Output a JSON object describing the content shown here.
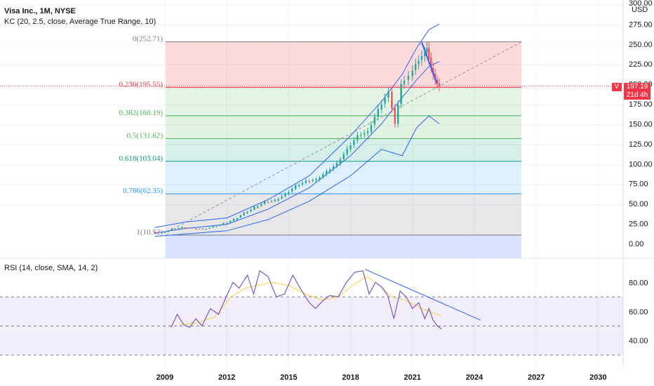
{
  "header": {
    "symbol_line": "Visa Inc., 1M, NYSE",
    "indicator_line": "KC (20, 2.5, close, Average True Range, 10)",
    "rsi_line": "RSI (14, close, SMA, 14, 2)"
  },
  "price_axis": {
    "currency": "USD",
    "partial_top": "300.00",
    "ticks": [
      "275.00",
      "250.00",
      "225.00",
      "200.00",
      "175.00",
      "150.00",
      "125.00",
      "100.00",
      "75.00",
      "50.00",
      "25.00",
      "0.00"
    ]
  },
  "rsi_axis": {
    "ticks": [
      "80.00",
      "60.00",
      "40.00"
    ]
  },
  "time_axis": {
    "ticks": [
      "2009",
      "2012",
      "2015",
      "2018",
      "2021",
      "2024",
      "2027",
      "2030"
    ]
  },
  "price_tag": {
    "symbol": "V",
    "price": "197.19",
    "countdown": "21d 4h",
    "color": "#f23645"
  },
  "colors": {
    "candle_up": "#26a69a",
    "candle_down": "#ef5350",
    "keltner": "#2962ff",
    "rsi_line": "#7e57c2",
    "rsi_ma": "#f5d33a",
    "fib_red": "#f23645",
    "fib_green": "#4caf50",
    "fib_teal": "#089981",
    "fib_blue": "#2196f3",
    "fib_gray": "#787b86"
  },
  "chart_data": {
    "type": "candlestick",
    "title": "Visa Inc., 1M, NYSE",
    "ylim": [
      0,
      300
    ],
    "fibonacci": [
      {
        "label": "0(252.71)",
        "level": 0,
        "price": 252.71
      },
      {
        "label": "0.236(195.55)",
        "level": 0.236,
        "price": 195.55
      },
      {
        "label": "0.382(160.19)",
        "level": 0.382,
        "price": 160.19
      },
      {
        "label": "0.5(131.62)",
        "level": 0.5,
        "price": 131.62
      },
      {
        "label": "0.618(103.04)",
        "level": 0.618,
        "price": 103.04
      },
      {
        "label": "0.786(62.35)",
        "level": 0.786,
        "price": 62.35
      },
      {
        "label": "1(10.52)",
        "level": 1,
        "price": 10.52
      }
    ],
    "close": [
      [
        2008.5,
        15
      ],
      [
        2009.0,
        13
      ],
      [
        2009.5,
        18
      ],
      [
        2010.0,
        20
      ],
      [
        2010.5,
        19
      ],
      [
        2011.0,
        18
      ],
      [
        2011.5,
        21
      ],
      [
        2012.0,
        25
      ],
      [
        2012.5,
        30
      ],
      [
        2013.0,
        38
      ],
      [
        2013.5,
        45
      ],
      [
        2014.0,
        52
      ],
      [
        2014.5,
        54
      ],
      [
        2015.0,
        62
      ],
      [
        2015.5,
        72
      ],
      [
        2016.0,
        78
      ],
      [
        2016.5,
        80
      ],
      [
        2017.0,
        90
      ],
      [
        2017.5,
        100
      ],
      [
        2018.0,
        118
      ],
      [
        2018.5,
        135
      ],
      [
        2019.0,
        140
      ],
      [
        2019.5,
        168
      ],
      [
        2020.0,
        190
      ],
      [
        2020.3,
        150
      ],
      [
        2020.6,
        200
      ],
      [
        2021.0,
        210
      ],
      [
        2021.3,
        225
      ],
      [
        2021.6,
        235
      ],
      [
        2021.8,
        245
      ],
      [
        2022.0,
        220
      ],
      [
        2022.2,
        205
      ],
      [
        2022.4,
        197.19
      ]
    ],
    "keltner_upper": [
      [
        2008.5,
        20
      ],
      [
        2010,
        27
      ],
      [
        2012,
        32
      ],
      [
        2014,
        55
      ],
      [
        2016,
        85
      ],
      [
        2018,
        135
      ],
      [
        2019.5,
        178
      ],
      [
        2020.5,
        212
      ],
      [
        2021.2,
        245
      ],
      [
        2021.8,
        268
      ],
      [
        2022.3,
        275
      ]
    ],
    "keltner_middle": [
      [
        2008.5,
        13
      ],
      [
        2010,
        19
      ],
      [
        2012,
        24
      ],
      [
        2014,
        43
      ],
      [
        2016,
        70
      ],
      [
        2018,
        110
      ],
      [
        2019.5,
        150
      ],
      [
        2020.5,
        183
      ],
      [
        2021.2,
        205
      ],
      [
        2021.8,
        222
      ],
      [
        2022.3,
        228
      ]
    ],
    "keltner_lower": [
      [
        2008.5,
        9
      ],
      [
        2010,
        12
      ],
      [
        2012,
        16
      ],
      [
        2014,
        30
      ],
      [
        2016,
        53
      ],
      [
        2018,
        85
      ],
      [
        2019.5,
        118
      ],
      [
        2020.5,
        110
      ],
      [
        2021.2,
        145
      ],
      [
        2021.8,
        160
      ],
      [
        2022.3,
        150
      ]
    ],
    "rsi": [
      [
        2009.3,
        49
      ],
      [
        2009.6,
        58
      ],
      [
        2009.9,
        51
      ],
      [
        2010.2,
        49
      ],
      [
        2010.5,
        55
      ],
      [
        2010.8,
        50
      ],
      [
        2011.2,
        62
      ],
      [
        2011.6,
        58
      ],
      [
        2012.0,
        71
      ],
      [
        2012.3,
        80
      ],
      [
        2012.6,
        76
      ],
      [
        2013.0,
        85
      ],
      [
        2013.3,
        72
      ],
      [
        2013.6,
        88
      ],
      [
        2014.0,
        84
      ],
      [
        2014.4,
        70
      ],
      [
        2014.8,
        72
      ],
      [
        2015.2,
        85
      ],
      [
        2015.6,
        75
      ],
      [
        2016.0,
        66
      ],
      [
        2016.3,
        62
      ],
      [
        2016.7,
        68
      ],
      [
        2017.0,
        71
      ],
      [
        2017.4,
        70
      ],
      [
        2017.8,
        80
      ],
      [
        2018.2,
        87
      ],
      [
        2018.6,
        88
      ],
      [
        2018.9,
        72
      ],
      [
        2019.2,
        80
      ],
      [
        2019.5,
        77
      ],
      [
        2019.8,
        71
      ],
      [
        2020.1,
        55
      ],
      [
        2020.4,
        74
      ],
      [
        2020.7,
        70
      ],
      [
        2021.0,
        62
      ],
      [
        2021.3,
        66
      ],
      [
        2021.6,
        55
      ],
      [
        2021.8,
        62
      ],
      [
        2022.0,
        54
      ],
      [
        2022.2,
        50
      ],
      [
        2022.4,
        48
      ]
    ],
    "rsi_ma": [
      [
        2009.7,
        51
      ],
      [
        2010.5,
        52
      ],
      [
        2011.4,
        56
      ],
      [
        2012.2,
        70
      ],
      [
        2012.9,
        76
      ],
      [
        2013.5,
        78
      ],
      [
        2014.2,
        80
      ],
      [
        2015.0,
        78
      ],
      [
        2015.8,
        72
      ],
      [
        2016.6,
        68
      ],
      [
        2017.4,
        70
      ],
      [
        2018.2,
        79
      ],
      [
        2018.8,
        84
      ],
      [
        2019.4,
        78
      ],
      [
        2020.0,
        70
      ],
      [
        2020.6,
        68
      ],
      [
        2021.2,
        64
      ],
      [
        2021.8,
        60
      ],
      [
        2022.4,
        57
      ]
    ],
    "rsi_levels": [
      70,
      50,
      30
    ]
  }
}
